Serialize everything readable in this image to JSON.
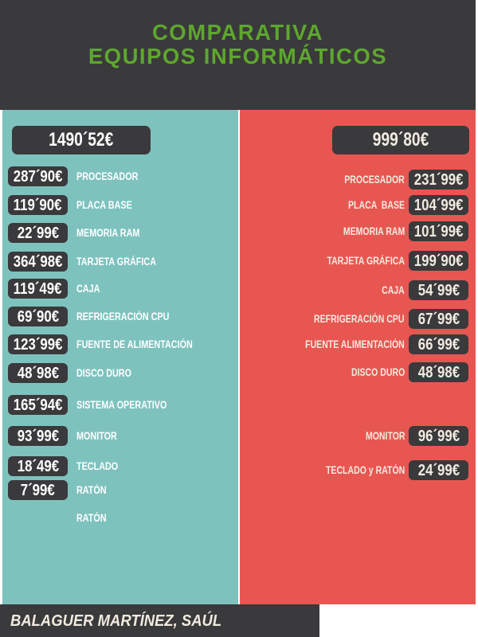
{
  "header": {
    "title_line1": "COMPARATIVA",
    "title_line2": "EQUIPOS INFORMÁTICOS"
  },
  "left_column": {
    "total": "1490´52€",
    "items": [
      {
        "price": "287´90€",
        "label": "PROCESADOR"
      },
      {
        "price": "119´90€",
        "label": "PLACA BASE"
      },
      {
        "price": "22´99€",
        "label": "MEMORIA RAM"
      },
      {
        "price": "364´98€",
        "label": "TARJETA GRÁFICA"
      },
      {
        "price": "119´49€",
        "label": "CAJA"
      },
      {
        "price": "69´90€",
        "label": "REFRIGERACIÓN CPU"
      },
      {
        "price": "123´99€",
        "label": "FUENTE DE ALIMENTACIÓN"
      },
      {
        "price": "48´98€",
        "label": "DISCO DURO"
      },
      {
        "price": "165´94€",
        "label": "SISTEMA OPERATIVO"
      },
      {
        "price": "93´99€",
        "label": "MONITOR"
      },
      {
        "price": "18´49€",
        "label": "TECLADO"
      },
      {
        "price": "7´99€",
        "label": "RATÓN"
      },
      {
        "price": "",
        "label": "RATÓN"
      }
    ]
  },
  "right_column": {
    "total": "999´80€",
    "items": [
      {
        "label": "PROCESADOR",
        "price": "231´99€"
      },
      {
        "label": "PLACA  BASE",
        "price": "104´99€"
      },
      {
        "label": "MEMORIA RAM",
        "price": "101´99€"
      },
      {
        "label": "TARJETA GRÁFICA",
        "price": "199´90€"
      },
      {
        "label": "CAJA",
        "price": "54´99€"
      },
      {
        "label": "REFRIGERACIÓN CPU",
        "price": "67´99€"
      },
      {
        "label": "FUENTE ALIMENTACIÓN",
        "price": "66´99€"
      },
      {
        "label": "DISCO DURO",
        "price": "48´98€"
      },
      {
        "label": "MONITOR",
        "price": "96´99€"
      },
      {
        "label": "TECLADO y RATÓN",
        "price": "24´99€"
      }
    ]
  },
  "footer": {
    "name": "BALAGUER MARTÍNEZ, SAÚL"
  },
  "colors": {
    "background": "#ffffff",
    "dark": "#3a393b",
    "teal": "#7ec2be",
    "red": "#e85651",
    "green_title": "#5da72e",
    "left_text": "#ffffff",
    "right_text": "#f1ebe0"
  }
}
